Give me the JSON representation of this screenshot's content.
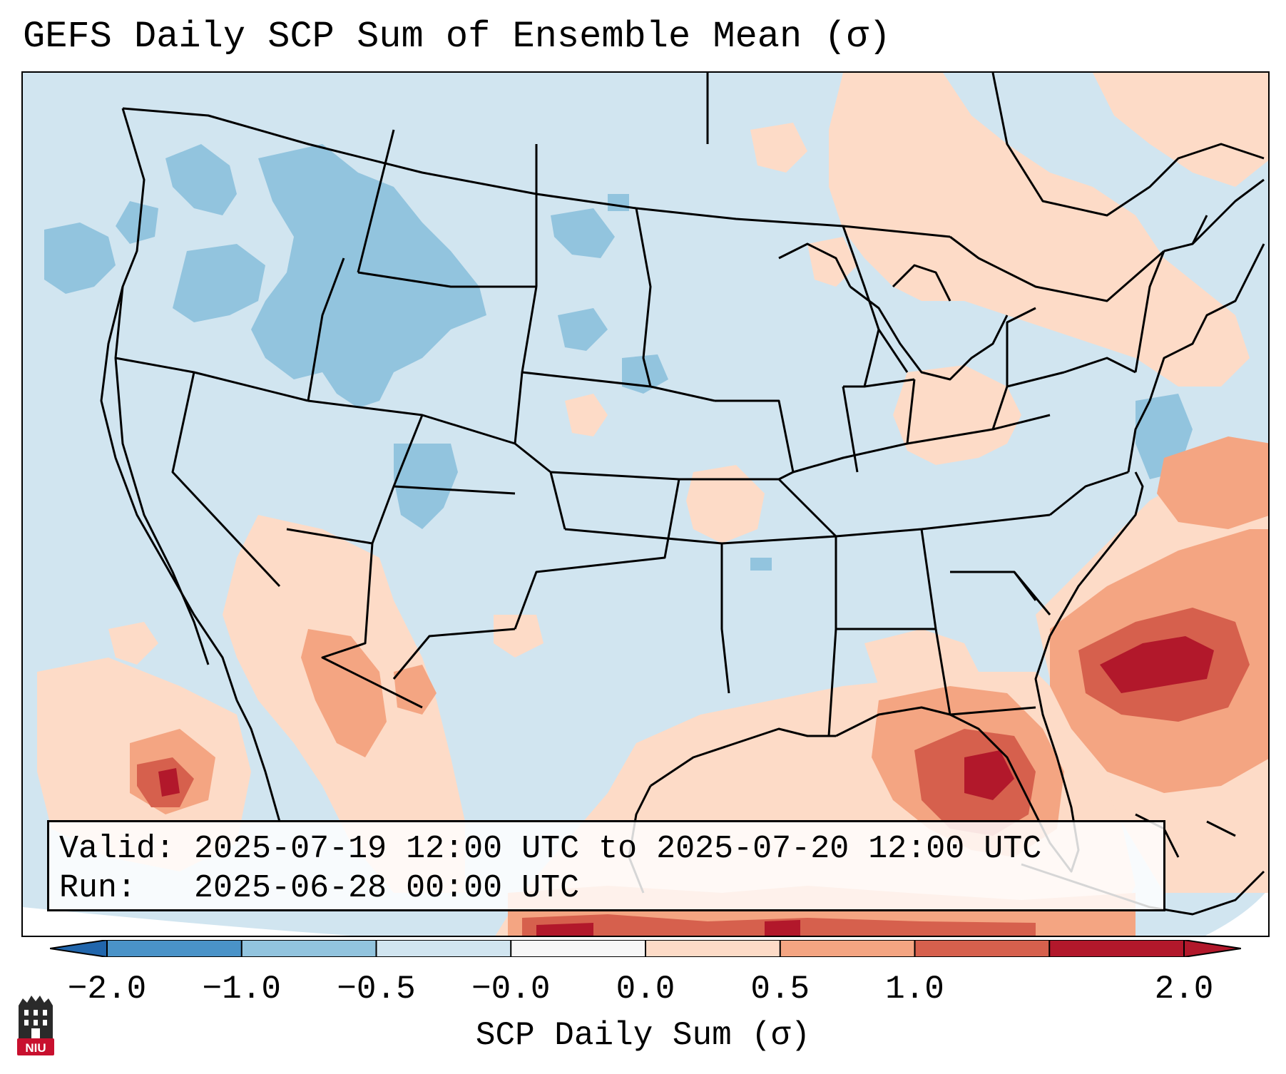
{
  "title": "GEFS Daily SCP Sum of Ensemble Mean (σ)",
  "info": {
    "valid_label": "Valid:",
    "valid_value": "2025-07-19 12:00 UTC to 2025-07-20 12:00 UTC",
    "run_label": "Run:",
    "run_value": "2025-06-28 00:00 UTC"
  },
  "colorbar": {
    "label": "SCP Daily Sum (σ)",
    "ticks": [
      "−2.0",
      "−1.0",
      "−0.5",
      "−0.0",
      "0.0",
      "0.5",
      "1.0",
      "2.0"
    ],
    "bin_colors": [
      "#4a93c8",
      "#92c4de",
      "#d1e5f0",
      "#f7f7f7",
      "#fddbc7",
      "#f4a582",
      "#d6604d",
      "#b2182b"
    ],
    "extend_min_color": "#2166ac",
    "extend_max_color": "#b2182b"
  },
  "map": {
    "region": "Contiguous United States",
    "colors": {
      "neutral_blue": "#d1e5f0",
      "light_blue": "#92c4de",
      "light_red": "#fddbc7",
      "mid_red": "#f4a582",
      "red": "#d6604d",
      "dark_red": "#b2182b",
      "outside": "#ffffff",
      "lines": "#000000"
    }
  },
  "logo": {
    "text": "NIU",
    "color": "#c8102e"
  }
}
